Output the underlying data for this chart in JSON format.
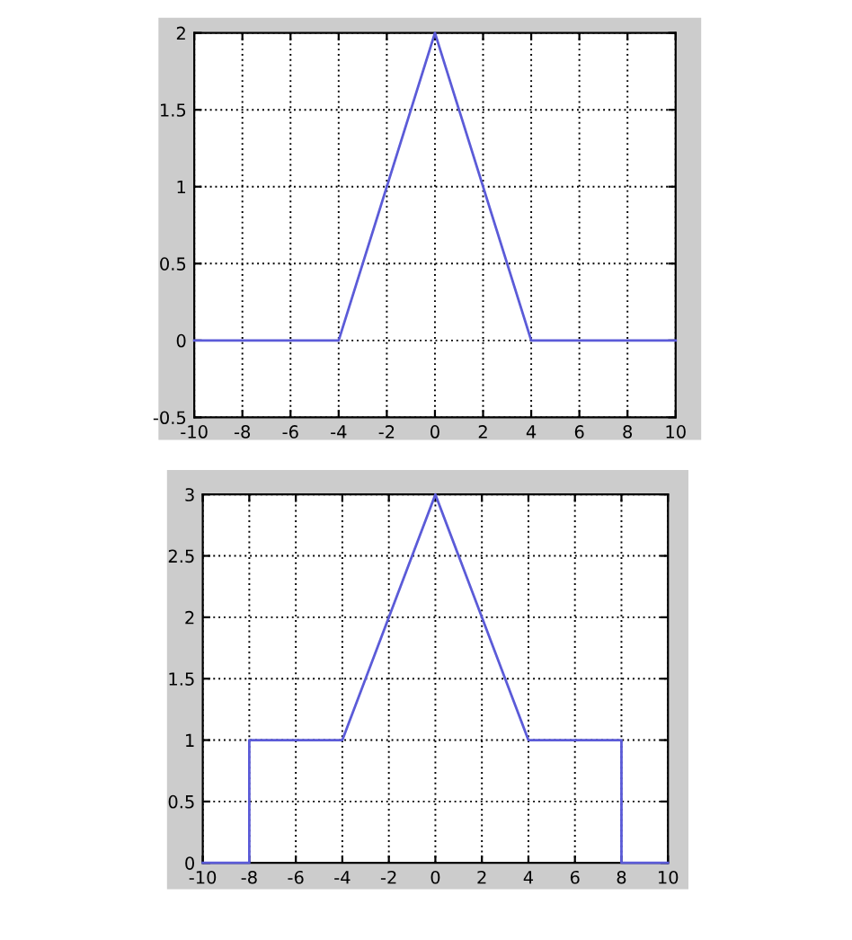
{
  "chart_data": [
    {
      "type": "line",
      "x": [
        -10,
        -4,
        0,
        4,
        10
      ],
      "series": [
        {
          "color": "#5b5bd8",
          "values": [
            0,
            0,
            2,
            0,
            0
          ]
        }
      ],
      "xlim": [
        -10,
        10
      ],
      "xticks": [
        -10,
        -8,
        -6,
        -4,
        -2,
        0,
        2,
        4,
        6,
        8,
        10
      ],
      "ylim": [
        -0.5,
        2
      ],
      "yticks": [
        -0.5,
        0,
        0.5,
        1,
        1.5,
        2
      ],
      "grid": true,
      "line_style": "solid",
      "marker": "none"
    },
    {
      "type": "line",
      "x": [
        -10,
        -8,
        -8,
        -4,
        0,
        4,
        8,
        8,
        10
      ],
      "series": [
        {
          "color": "#5b5bd8",
          "values": [
            0,
            0,
            1,
            1,
            3,
            1,
            1,
            0,
            0
          ]
        }
      ],
      "xlim": [
        -10,
        10
      ],
      "xticks": [
        -10,
        -8,
        -6,
        -4,
        -2,
        0,
        2,
        4,
        6,
        8,
        10
      ],
      "ylim": [
        0,
        3
      ],
      "yticks": [
        0,
        0.5,
        1,
        1.5,
        2,
        2.5,
        3
      ],
      "grid": true,
      "line_style": "solid",
      "marker": "none"
    }
  ]
}
